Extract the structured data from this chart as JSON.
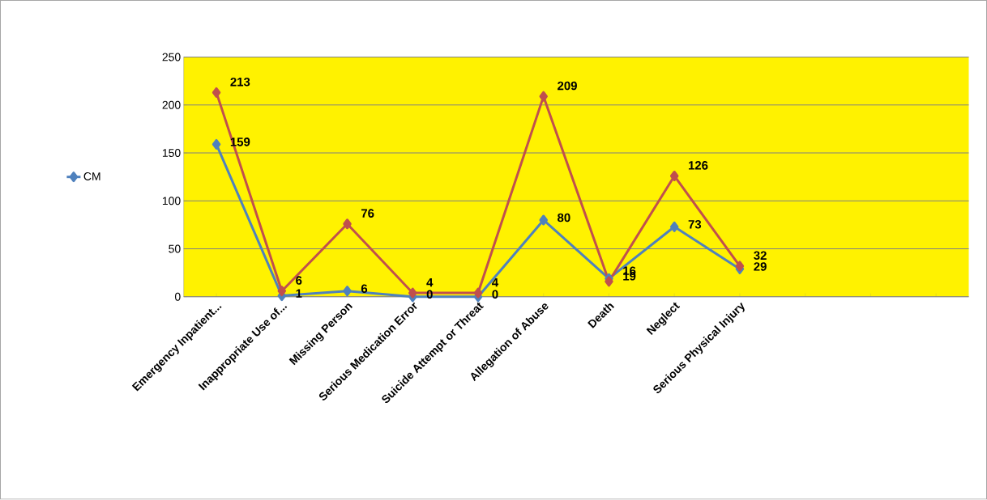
{
  "chart_data": {
    "type": "line",
    "categories": [
      "Emergency Inpatient...",
      "Inappropriate Use of...",
      "Missing Person",
      "Serious Medication Error",
      "Suicide Attempt or Threat",
      "Allegation of Abuse",
      "Death",
      "Neglect",
      "Serious Physical Injury",
      null,
      null,
      null
    ],
    "series": [
      {
        "name": "CM",
        "color": "#4f81bd",
        "values": [
          159,
          1,
          6,
          0,
          0,
          80,
          19,
          73,
          29,
          null,
          null,
          null
        ]
      },
      {
        "color": "#c0504d",
        "values": [
          213,
          6,
          76,
          4,
          4,
          209,
          16,
          126,
          32,
          null,
          null,
          null
        ]
      }
    ],
    "ylim": [
      0,
      250
    ],
    "yticks": [
      0,
      50,
      100,
      150,
      200,
      250
    ],
    "grid": "y",
    "legend": "left",
    "marker": "diamond",
    "line_style": "solid",
    "data_labels": true
  }
}
